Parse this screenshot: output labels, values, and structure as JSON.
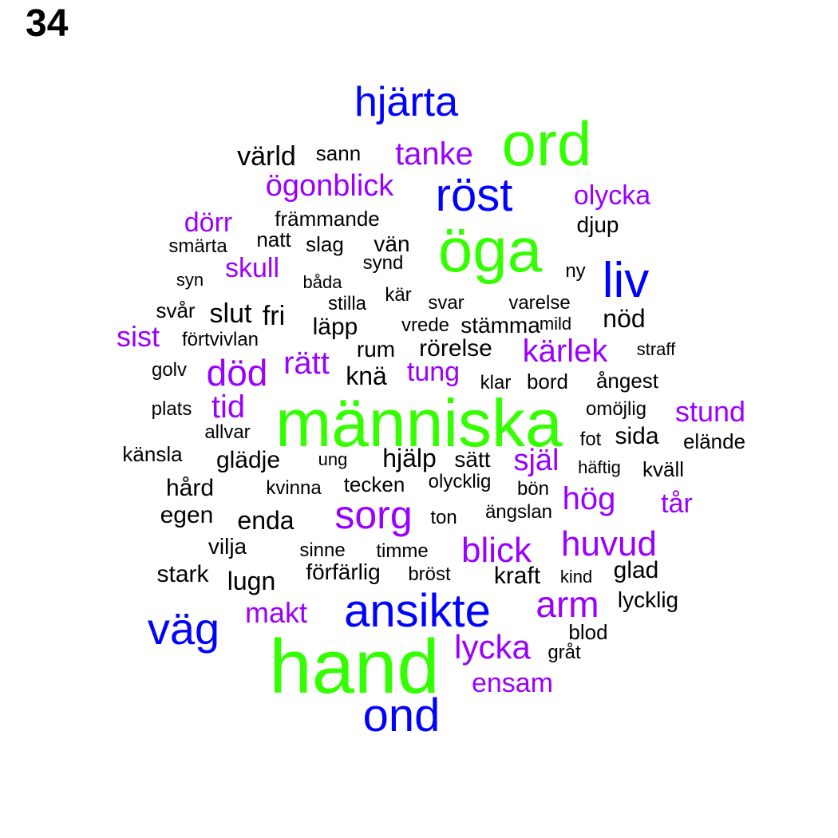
{
  "page_number": "34",
  "colors": {
    "green": "#33ff00",
    "blue": "#0000ff",
    "purple": "#9900ff",
    "black": "#000000"
  },
  "words": [
    {
      "text": "hand",
      "color": "green"
    },
    {
      "text": "människa",
      "color": "green"
    },
    {
      "text": "öga",
      "color": "green"
    },
    {
      "text": "ord",
      "color": "green"
    },
    {
      "text": "hjärta",
      "color": "blue"
    },
    {
      "text": "röst",
      "color": "blue"
    },
    {
      "text": "liv",
      "color": "blue"
    },
    {
      "text": "ansikte",
      "color": "blue"
    },
    {
      "text": "väg",
      "color": "blue"
    },
    {
      "text": "ond",
      "color": "blue"
    },
    {
      "text": "tanke",
      "color": "purple"
    },
    {
      "text": "ögonblick",
      "color": "purple"
    },
    {
      "text": "olycka",
      "color": "purple"
    },
    {
      "text": "dörr",
      "color": "purple"
    },
    {
      "text": "skull",
      "color": "purple"
    },
    {
      "text": "sist",
      "color": "purple"
    },
    {
      "text": "död",
      "color": "purple"
    },
    {
      "text": "rätt",
      "color": "purple"
    },
    {
      "text": "kärlek",
      "color": "purple"
    },
    {
      "text": "tung",
      "color": "purple"
    },
    {
      "text": "tid",
      "color": "purple"
    },
    {
      "text": "stund",
      "color": "purple"
    },
    {
      "text": "själ",
      "color": "purple"
    },
    {
      "text": "hög",
      "color": "purple"
    },
    {
      "text": "tår",
      "color": "purple"
    },
    {
      "text": "sorg",
      "color": "purple"
    },
    {
      "text": "blick",
      "color": "purple"
    },
    {
      "text": "huvud",
      "color": "purple"
    },
    {
      "text": "arm",
      "color": "purple"
    },
    {
      "text": "makt",
      "color": "purple"
    },
    {
      "text": "lycka",
      "color": "purple"
    },
    {
      "text": "ensam",
      "color": "purple"
    },
    {
      "text": "värld",
      "color": "black"
    },
    {
      "text": "sann",
      "color": "black"
    },
    {
      "text": "främmande",
      "color": "black"
    },
    {
      "text": "djup",
      "color": "black"
    },
    {
      "text": "smärta",
      "color": "black"
    },
    {
      "text": "natt",
      "color": "black"
    },
    {
      "text": "slag",
      "color": "black"
    },
    {
      "text": "vän",
      "color": "black"
    },
    {
      "text": "synd",
      "color": "black"
    },
    {
      "text": "ny",
      "color": "black"
    },
    {
      "text": "syn",
      "color": "black"
    },
    {
      "text": "båda",
      "color": "black"
    },
    {
      "text": "kär",
      "color": "black"
    },
    {
      "text": "stilla",
      "color": "black"
    },
    {
      "text": "svar",
      "color": "black"
    },
    {
      "text": "varelse",
      "color": "black"
    },
    {
      "text": "svår",
      "color": "black"
    },
    {
      "text": "slut",
      "color": "black"
    },
    {
      "text": "fri",
      "color": "black"
    },
    {
      "text": "läpp",
      "color": "black"
    },
    {
      "text": "vrede",
      "color": "black"
    },
    {
      "text": "stämma",
      "color": "black"
    },
    {
      "text": "mild",
      "color": "black"
    },
    {
      "text": "nöd",
      "color": "black"
    },
    {
      "text": "förtvivlan",
      "color": "black"
    },
    {
      "text": "rum",
      "color": "black"
    },
    {
      "text": "rörelse",
      "color": "black"
    },
    {
      "text": "straff",
      "color": "black"
    },
    {
      "text": "golv",
      "color": "black"
    },
    {
      "text": "knä",
      "color": "black"
    },
    {
      "text": "klar",
      "color": "black"
    },
    {
      "text": "bord",
      "color": "black"
    },
    {
      "text": "ångest",
      "color": "black"
    },
    {
      "text": "plats",
      "color": "black"
    },
    {
      "text": "omöjlig",
      "color": "black"
    },
    {
      "text": "allvar",
      "color": "black"
    },
    {
      "text": "fot",
      "color": "black"
    },
    {
      "text": "sida",
      "color": "black"
    },
    {
      "text": "elände",
      "color": "black"
    },
    {
      "text": "känsla",
      "color": "black"
    },
    {
      "text": "glädje",
      "color": "black"
    },
    {
      "text": "ung",
      "color": "black"
    },
    {
      "text": "hjälp",
      "color": "black"
    },
    {
      "text": "sätt",
      "color": "black"
    },
    {
      "text": "häftig",
      "color": "black"
    },
    {
      "text": "kväll",
      "color": "black"
    },
    {
      "text": "hård",
      "color": "black"
    },
    {
      "text": "kvinna",
      "color": "black"
    },
    {
      "text": "tecken",
      "color": "black"
    },
    {
      "text": "olycklig",
      "color": "black"
    },
    {
      "text": "bön",
      "color": "black"
    },
    {
      "text": "egen",
      "color": "black"
    },
    {
      "text": "enda",
      "color": "black"
    },
    {
      "text": "ton",
      "color": "black"
    },
    {
      "text": "ängslan",
      "color": "black"
    },
    {
      "text": "vilja",
      "color": "black"
    },
    {
      "text": "sinne",
      "color": "black"
    },
    {
      "text": "timme",
      "color": "black"
    },
    {
      "text": "stark",
      "color": "black"
    },
    {
      "text": "lugn",
      "color": "black"
    },
    {
      "text": "förfärlig",
      "color": "black"
    },
    {
      "text": "bröst",
      "color": "black"
    },
    {
      "text": "kraft",
      "color": "black"
    },
    {
      "text": "kind",
      "color": "black"
    },
    {
      "text": "glad",
      "color": "black"
    },
    {
      "text": "lycklig",
      "color": "black"
    },
    {
      "text": "blod",
      "color": "black"
    },
    {
      "text": "gråt",
      "color": "black"
    }
  ]
}
